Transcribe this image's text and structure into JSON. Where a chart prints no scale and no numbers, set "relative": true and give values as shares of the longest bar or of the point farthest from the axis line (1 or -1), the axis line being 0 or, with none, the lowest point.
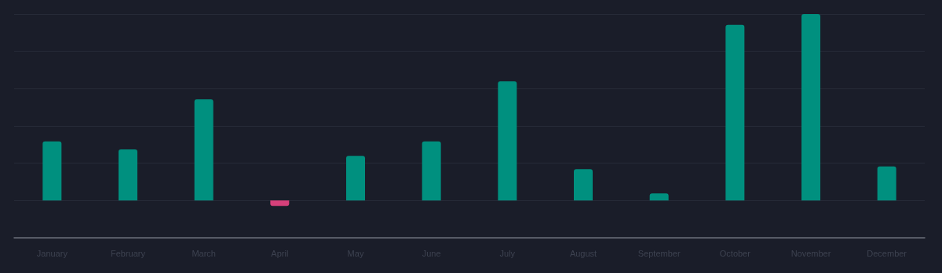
{
  "chart_data": {
    "type": "bar",
    "relative": true,
    "grid": "y",
    "categories": [
      "January",
      "February",
      "March",
      "April",
      "May",
      "June",
      "July",
      "August",
      "September",
      "October",
      "November",
      "December"
    ],
    "values": [
      0.317,
      0.274,
      0.543,
      -0.029,
      0.24,
      0.317,
      0.639,
      0.168,
      0.038,
      0.942,
      1,
      0.183
    ],
    "colors": [
      "#00907f",
      "#00907f",
      "#00907f",
      "#d6407a",
      "#00907f",
      "#00907f",
      "#00907f",
      "#00907f",
      "#00907f",
      "#00907f",
      "#00907f",
      "#00907f"
    ]
  }
}
